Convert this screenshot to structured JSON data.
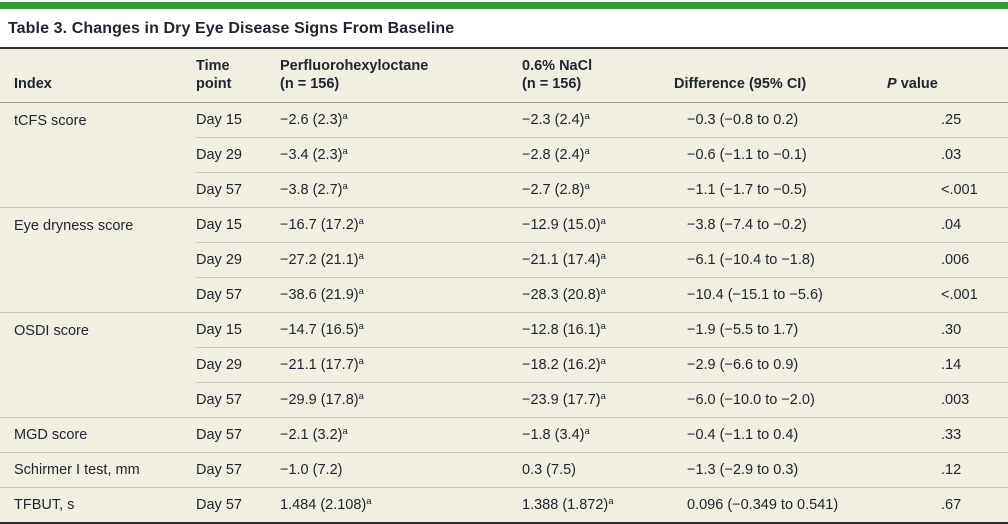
{
  "title": "Table 3. Changes in Dry Eye Disease Signs From Baseline",
  "colors": {
    "accent_green": "#2e9d36",
    "table_background": "#f1eee2",
    "text": "#20262f",
    "dark_rule": "#2d2d2d",
    "header_rule": "#a6a39a",
    "row_rule": "#ccc9c0"
  },
  "columns": [
    {
      "id": "index",
      "lines": [
        "Index"
      ]
    },
    {
      "id": "time",
      "lines": [
        "Time",
        "point"
      ]
    },
    {
      "id": "drug",
      "lines": [
        "Perfluorohexyloctane",
        "(n = 156)"
      ]
    },
    {
      "id": "nacl",
      "lines": [
        "0.6% NaCl",
        "(n = 156)"
      ]
    },
    {
      "id": "diff",
      "lines": [
        "Difference (95% CI)"
      ]
    },
    {
      "id": "pvalue",
      "lines": [
        "P value"
      ],
      "italic_first_char": true
    }
  ],
  "rows": [
    {
      "index": "tCFS score",
      "time": "Day 15",
      "drug": "−2.6 (2.3)",
      "drug_sup": "a",
      "nacl": "−2.3 (2.4)",
      "nacl_sup": "a",
      "diff": "−0.3 (−0.8 to 0.2)",
      "p": ".25",
      "section_start": true
    },
    {
      "index": "",
      "time": "Day 29",
      "drug": "−3.4 (2.3)",
      "drug_sup": "a",
      "nacl": "−2.8 (2.4)",
      "nacl_sup": "a",
      "diff": "−0.6 (−1.1 to −0.1)",
      "p": ".03",
      "section_start": false
    },
    {
      "index": "",
      "time": "Day 57",
      "drug": "−3.8 (2.7)",
      "drug_sup": "a",
      "nacl": "−2.7 (2.8)",
      "nacl_sup": "a",
      "diff": "−1.1 (−1.7 to −0.5)",
      "p": "<.001",
      "section_start": false
    },
    {
      "index": "Eye dryness score",
      "time": "Day 15",
      "drug": "−16.7 (17.2)",
      "drug_sup": "a",
      "nacl": "−12.9 (15.0)",
      "nacl_sup": "a",
      "diff": "−3.8 (−7.4 to −0.2)",
      "p": ".04",
      "section_start": true
    },
    {
      "index": "",
      "time": "Day 29",
      "drug": "−27.2 (21.1)",
      "drug_sup": "a",
      "nacl": "−21.1 (17.4)",
      "nacl_sup": "a",
      "diff": "−6.1 (−10.4 to −1.8)",
      "p": ".006",
      "section_start": false
    },
    {
      "index": "",
      "time": "Day 57",
      "drug": "−38.6 (21.9)",
      "drug_sup": "a",
      "nacl": "−28.3 (20.8)",
      "nacl_sup": "a",
      "diff": "−10.4 (−15.1 to −5.6)",
      "p": "<.001",
      "section_start": false
    },
    {
      "index": "OSDI score",
      "time": "Day 15",
      "drug": "−14.7 (16.5)",
      "drug_sup": "a",
      "nacl": "−12.8 (16.1)",
      "nacl_sup": "a",
      "diff": "−1.9 (−5.5 to 1.7)",
      "p": ".30",
      "section_start": true
    },
    {
      "index": "",
      "time": "Day 29",
      "drug": "−21.1 (17.7)",
      "drug_sup": "a",
      "nacl": "−18.2 (16.2)",
      "nacl_sup": "a",
      "diff": "−2.9 (−6.6 to 0.9)",
      "p": ".14",
      "section_start": false
    },
    {
      "index": "",
      "time": "Day 57",
      "drug": "−29.9 (17.8)",
      "drug_sup": "a",
      "nacl": "−23.9 (17.7)",
      "nacl_sup": "a",
      "diff": "−6.0 (−10.0 to −2.0)",
      "p": ".003",
      "section_start": false
    },
    {
      "index": "MGD score",
      "time": "Day 57",
      "drug": "−2.1 (3.2)",
      "drug_sup": "a",
      "nacl": "−1.8 (3.4)",
      "nacl_sup": "a",
      "diff": "−0.4 (−1.1 to 0.4)",
      "p": ".33",
      "section_start": true
    },
    {
      "index": "Schirmer I test, mm",
      "time": "Day 57",
      "drug": "−1.0 (7.2)",
      "drug_sup": "",
      "nacl": "0.3 (7.5)",
      "nacl_sup": "",
      "diff": "−1.3 (−2.9 to 0.3)",
      "p": ".12",
      "section_start": true
    },
    {
      "index": "TFBUT, s",
      "time": "Day 57",
      "drug": "1.484 (2.108)",
      "drug_sup": "a",
      "nacl": "1.388 (1.872)",
      "nacl_sup": "a",
      "diff": "0.096 (−0.349 to 0.541)",
      "p": ".67",
      "section_start": true
    }
  ]
}
